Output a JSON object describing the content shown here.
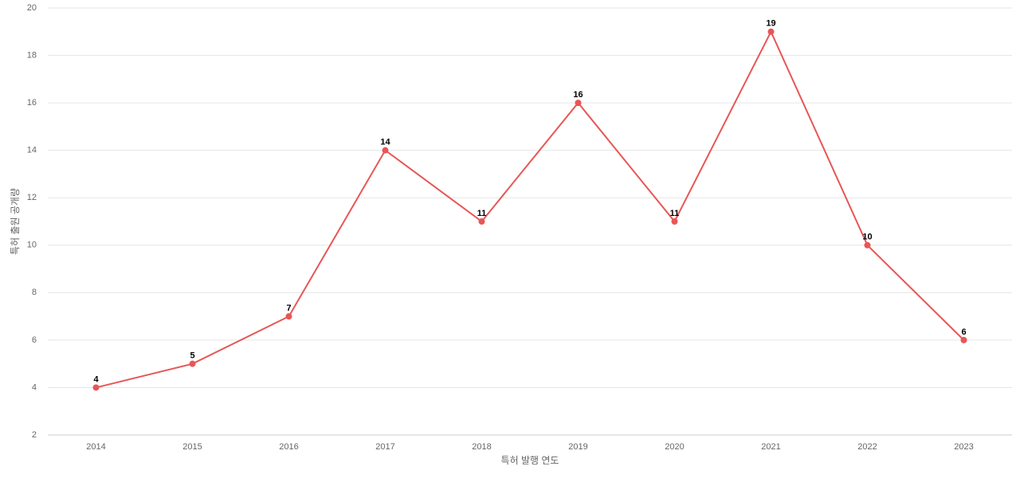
{
  "chart_data": {
    "type": "line",
    "x_label": "특허 발행 연도",
    "y_label": "특허 출원 공개량",
    "categories": [
      "2014",
      "2015",
      "2016",
      "2017",
      "2018",
      "2019",
      "2020",
      "2021",
      "2022",
      "2023"
    ],
    "values": [
      4,
      5,
      7,
      14,
      11,
      16,
      11,
      19,
      10,
      6
    ],
    "color": "#e85656",
    "ylim": [
      2,
      20
    ],
    "yticks": [
      2,
      4,
      6,
      8,
      10,
      12,
      14,
      16,
      18,
      20
    ],
    "grid": true
  }
}
